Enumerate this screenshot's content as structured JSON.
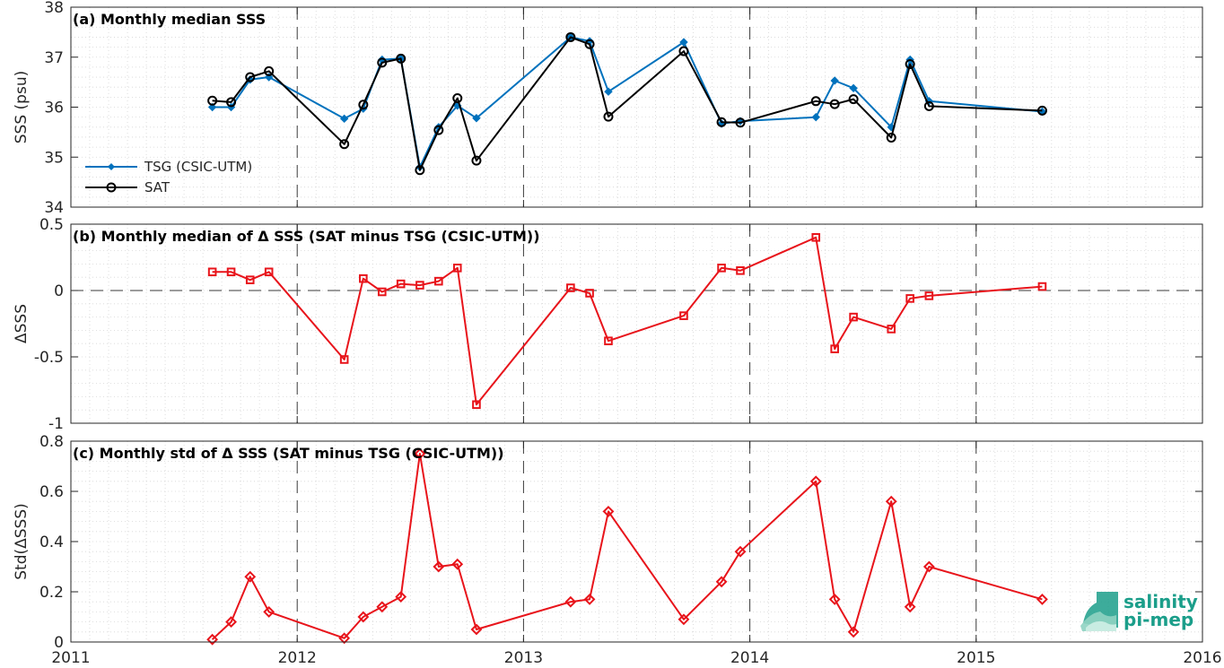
{
  "colors": {
    "tsg": "#0072bd",
    "sat": "#000000",
    "delta": "#e8141b",
    "logo": "#1b9e8a"
  },
  "logo": {
    "line1": "salinity",
    "line2": "pi-mep"
  },
  "x_axis": {
    "ticks": [
      2011,
      2012,
      2013,
      2014,
      2015,
      2016
    ],
    "tick_labels": [
      "2011",
      "2012",
      "2013",
      "2014",
      "2015",
      "2016"
    ],
    "range": [
      2011,
      2016
    ]
  },
  "chart_data": [
    {
      "type": "line",
      "panel": "a",
      "title": "(a) Monthly median SSS",
      "ylabel": "SSS (psu)",
      "ylim": [
        34,
        38
      ],
      "yticks": [
        34,
        35,
        36,
        37,
        38
      ],
      "ytick_labels": [
        "34",
        "35",
        "36",
        "37",
        "38"
      ],
      "grid": "dotted",
      "legend": "bottom-left",
      "series": [
        {
          "name": "TSG (CSIC-UTM)",
          "marker": "diamond-filled",
          "x": [
            2011.625,
            2011.708,
            2011.792,
            2011.875,
            2012.208,
            2012.292,
            2012.375,
            2012.458,
            2012.542,
            2012.625,
            2012.708,
            2012.792,
            2013.208,
            2013.292,
            2013.375,
            2013.708,
            2013.875,
            2013.958,
            2014.292,
            2014.375,
            2014.458,
            2014.625,
            2014.708,
            2014.792,
            2015.292
          ],
          "y": [
            36.0,
            36.0,
            36.55,
            36.6,
            35.77,
            35.97,
            36.95,
            36.97,
            34.8,
            35.6,
            36.03,
            35.78,
            37.4,
            37.32,
            36.31,
            37.3,
            35.67,
            35.72,
            35.8,
            36.53,
            36.38,
            35.6,
            36.95,
            36.12,
            35.91
          ]
        },
        {
          "name": "SAT",
          "marker": "circle-open",
          "x": [
            2011.625,
            2011.708,
            2011.792,
            2011.875,
            2012.208,
            2012.292,
            2012.375,
            2012.458,
            2012.542,
            2012.625,
            2012.708,
            2012.792,
            2013.208,
            2013.292,
            2013.375,
            2013.708,
            2013.875,
            2013.958,
            2014.292,
            2014.375,
            2014.458,
            2014.625,
            2014.708,
            2014.792,
            2015.292
          ],
          "y": [
            36.13,
            36.1,
            36.6,
            36.72,
            35.26,
            36.05,
            36.89,
            36.97,
            34.74,
            35.54,
            36.18,
            34.93,
            37.4,
            37.26,
            35.81,
            37.12,
            35.7,
            35.69,
            36.12,
            36.06,
            36.16,
            35.39,
            36.86,
            36.02,
            35.93
          ]
        }
      ]
    },
    {
      "type": "line",
      "panel": "b",
      "title": "(b) Monthly median of Δ SSS (SAT minus TSG (CSIC-UTM))",
      "ylabel": "ΔSSS",
      "ylim": [
        -1,
        0.5
      ],
      "yticks": [
        -1,
        -0.5,
        0,
        0.5
      ],
      "ytick_labels": [
        "-1",
        "-0.5",
        "0",
        "0.5"
      ],
      "grid": "dotted",
      "zero_line": "dashed",
      "series": [
        {
          "marker": "square-open",
          "x": [
            2011.625,
            2011.708,
            2011.792,
            2011.875,
            2012.208,
            2012.292,
            2012.375,
            2012.458,
            2012.542,
            2012.625,
            2012.708,
            2012.792,
            2013.208,
            2013.292,
            2013.375,
            2013.708,
            2013.875,
            2013.958,
            2014.292,
            2014.375,
            2014.458,
            2014.625,
            2014.708,
            2014.792,
            2015.292
          ],
          "y": [
            0.14,
            0.14,
            0.08,
            0.14,
            -0.52,
            0.09,
            -0.01,
            0.05,
            0.04,
            0.07,
            0.17,
            -0.86,
            0.02,
            -0.02,
            -0.38,
            -0.19,
            0.17,
            0.15,
            0.4,
            -0.44,
            -0.2,
            -0.29,
            -0.06,
            -0.04,
            0.03
          ]
        }
      ]
    },
    {
      "type": "line",
      "panel": "c",
      "title": "(c) Monthly std of Δ SSS (SAT minus TSG (CSIC-UTM))",
      "ylabel": "Std(ΔSSS)",
      "ylim": [
        0,
        0.8
      ],
      "yticks": [
        0,
        0.2,
        0.4,
        0.6,
        0.8
      ],
      "ytick_labels": [
        "0",
        "0.2",
        "0.4",
        "0.6",
        "0.8"
      ],
      "grid": "dotted",
      "series": [
        {
          "marker": "diamond-open",
          "x": [
            2011.625,
            2011.708,
            2011.792,
            2011.875,
            2012.208,
            2012.292,
            2012.375,
            2012.458,
            2012.542,
            2012.625,
            2012.708,
            2012.792,
            2013.208,
            2013.292,
            2013.375,
            2013.708,
            2013.875,
            2013.958,
            2014.292,
            2014.375,
            2014.458,
            2014.625,
            2014.708,
            2014.792,
            2015.292
          ],
          "y": [
            0.01,
            0.08,
            0.26,
            0.12,
            0.015,
            0.1,
            0.14,
            0.18,
            0.75,
            0.3,
            0.31,
            0.05,
            0.16,
            0.17,
            0.52,
            0.09,
            0.24,
            0.36,
            0.64,
            0.17,
            0.04,
            0.56,
            0.14,
            0.3,
            0.17
          ]
        }
      ]
    }
  ]
}
